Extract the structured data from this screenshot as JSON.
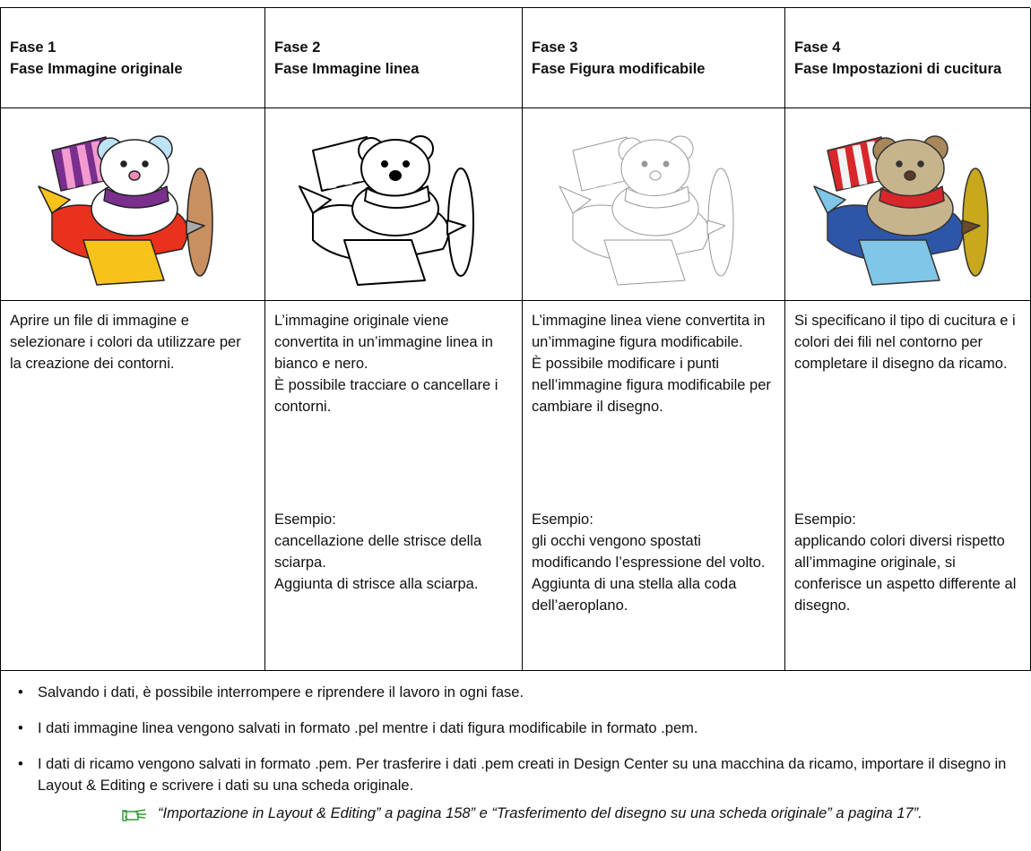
{
  "table": {
    "columns": [
      {
        "phase": "Fase 1",
        "title": "Fase Immagine originale",
        "description": [
          "Aprire un file di immagine e selezionare i colori da utilizzare per la creazione dei contorni."
        ]
      },
      {
        "phase": "Fase 2",
        "title": "Fase Immagine linea",
        "description": [
          "L’immagine originale viene convertita in un’immagine linea in bianco e nero.",
          "È possibile tracciare o cancellare i contorni."
        ],
        "example": {
          "label": "Esempio:",
          "lines": [
            "cancellazione delle strisce della sciarpa.",
            "Aggiunta di strisce alla sciarpa."
          ]
        }
      },
      {
        "phase": "Fase 3",
        "title": "Fase Figura modificabile",
        "description": [
          "L’immagine linea viene convertita in un’immagine figura modificabile.",
          "È possibile modificare i punti nell’immagine figura modificabile per cambiare il disegno."
        ],
        "example": {
          "label": "Esempio:",
          "lines": [
            "gli occhi vengono spostati modificando l’espressione del volto.",
            "Aggiunta di una stella alla coda dell’aeroplano."
          ]
        }
      },
      {
        "phase": "Fase 4",
        "title": "Fase Impostazioni di cucitura",
        "description": [
          "Si specificano il tipo di cucitura e i colori dei fili nel contorno per completare il disegno da ricamo."
        ],
        "example": {
          "label": "Esempio:",
          "lines": [
            "applicando colori diversi rispetto all’immagine originale, si conferisce un aspetto differente al disegno."
          ]
        }
      }
    ]
  },
  "notes": [
    "Salvando i dati, è possibile interrompere e riprendere il lavoro in ogni fase.",
    "I dati immagine linea vengono salvati in formato .pel mentre i dati figura modificabile in formato .pem.",
    "I dati di ricamo vengono salvati in formato .pem. Per trasferire i dati .pem creati in Design Center su una macchina da ricamo, importare il disegno in Layout & Editing e scrivere i dati su una scheda originale."
  ],
  "reference": "“Importazione in Layout & Editing” a pagina 158” e “Trasferimento del disegno su una scheda originale” a pagina 17”."
}
